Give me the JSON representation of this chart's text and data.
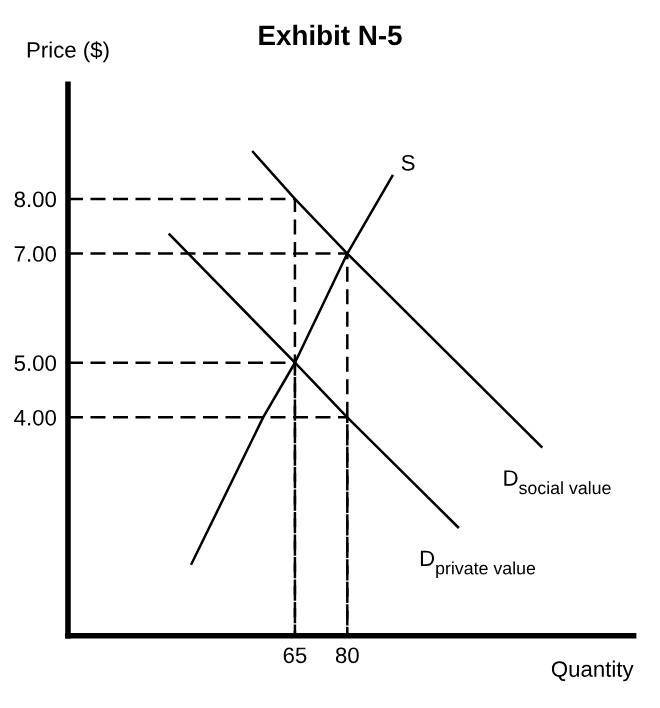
{
  "chart_data": {
    "type": "line",
    "title": "Exhibit N-5",
    "xlabel": "Quantity",
    "ylabel": "Price ($)",
    "xlim": [
      0,
      162
    ],
    "ylim": [
      0,
      10.1
    ],
    "xticks": [
      65,
      80
    ],
    "yticks": [
      {
        "value": 4,
        "label": "4.00"
      },
      {
        "value": 5,
        "label": "5.00"
      },
      {
        "value": 7,
        "label": "7.00"
      },
      {
        "value": 8,
        "label": "8.00"
      }
    ],
    "grid": false,
    "legend": false,
    "marker": "none",
    "series": [
      {
        "name": "S",
        "color": "#000000",
        "line_style": "solid",
        "x": [
          35.4,
          55.9,
          65,
          80,
          92.9
        ],
        "values": [
          1.32,
          4,
          5,
          7,
          8.42
        ]
      },
      {
        "name": "D$_{social value}$",
        "color": "#000000",
        "line_style": "solid",
        "x": [
          53,
          65,
          80,
          135.6
        ],
        "values": [
          8.86,
          8,
          7,
          3.46
        ]
      },
      {
        "name": "D$_{private value}$",
        "color": "#000000",
        "line_style": "solid",
        "x": [
          29.1,
          65,
          80,
          111.7
        ],
        "values": [
          7.35,
          5,
          4,
          1.99
        ]
      },
      {
        "color": "#000000",
        "line_style": "dashed",
        "x": [
          0,
          65,
          65
        ],
        "values": [
          8,
          8,
          0
        ]
      },
      {
        "color": "#000000",
        "line_style": "dashed",
        "x": [
          0,
          80,
          80
        ],
        "values": [
          7,
          7,
          0
        ]
      },
      {
        "color": "#000000",
        "line_style": "dashed",
        "x": [
          0,
          65,
          65
        ],
        "values": [
          5,
          5,
          0
        ]
      },
      {
        "color": "#000000",
        "line_style": "dashed",
        "x": [
          0,
          80,
          80
        ],
        "values": [
          4,
          4,
          0
        ]
      }
    ]
  }
}
